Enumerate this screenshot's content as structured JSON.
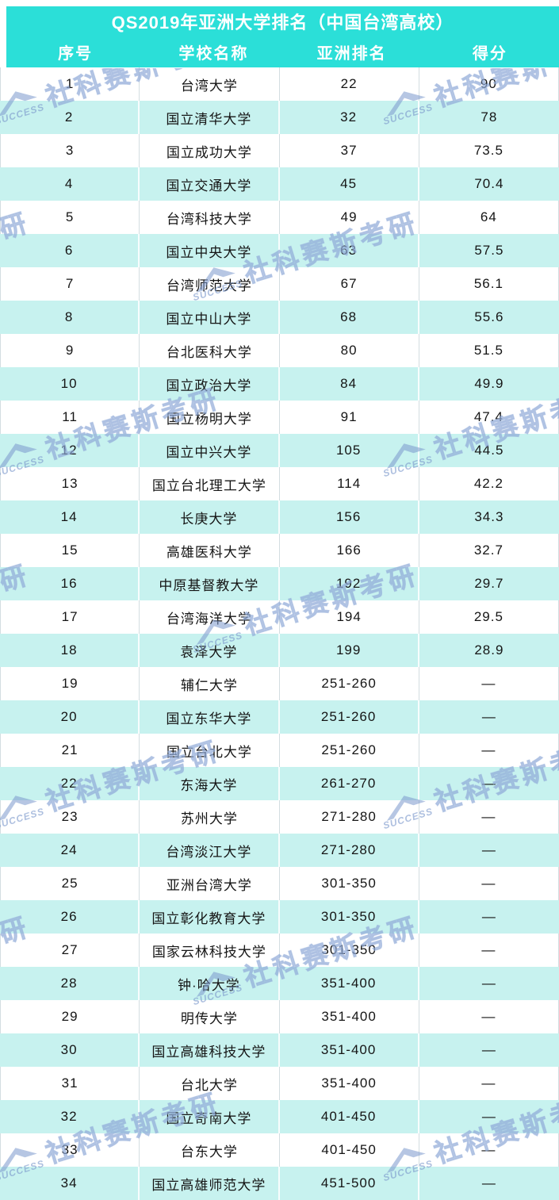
{
  "title": "QS2019年亚洲大学排名（中国台湾高校）",
  "columns": [
    "序号",
    "学校名称",
    "亚洲排名",
    "得分"
  ],
  "rows": [
    [
      "1",
      "台湾大学",
      "22",
      "90"
    ],
    [
      "2",
      "国立清华大学",
      "32",
      "78"
    ],
    [
      "3",
      "国立成功大学",
      "37",
      "73.5"
    ],
    [
      "4",
      "国立交通大学",
      "45",
      "70.4"
    ],
    [
      "5",
      "台湾科技大学",
      "49",
      "64"
    ],
    [
      "6",
      "国立中央大学",
      "63",
      "57.5"
    ],
    [
      "7",
      "台湾师范大学",
      "67",
      "56.1"
    ],
    [
      "8",
      "国立中山大学",
      "68",
      "55.6"
    ],
    [
      "9",
      "台北医科大学",
      "80",
      "51.5"
    ],
    [
      "10",
      "国立政治大学",
      "84",
      "49.9"
    ],
    [
      "11",
      "国立杨明大学",
      "91",
      "47.4"
    ],
    [
      "12",
      "国立中兴大学",
      "105",
      "44.5"
    ],
    [
      "13",
      "国立台北理工大学",
      "114",
      "42.2"
    ],
    [
      "14",
      "长庚大学",
      "156",
      "34.3"
    ],
    [
      "15",
      "高雄医科大学",
      "166",
      "32.7"
    ],
    [
      "16",
      "中原基督教大学",
      "192",
      "29.7"
    ],
    [
      "17",
      "台湾海洋大学",
      "194",
      "29.5"
    ],
    [
      "18",
      "袁泽大学",
      "199",
      "28.9"
    ],
    [
      "19",
      "辅仁大学",
      "251-260",
      "—"
    ],
    [
      "20",
      "国立东华大学",
      "251-260",
      "—"
    ],
    [
      "21",
      "国立台北大学",
      "251-260",
      "—"
    ],
    [
      "22",
      "东海大学",
      "261-270",
      "—"
    ],
    [
      "23",
      "苏州大学",
      "271-280",
      "—"
    ],
    [
      "24",
      "台湾淡江大学",
      "271-280",
      "—"
    ],
    [
      "25",
      "亚洲台湾大学",
      "301-350",
      "—"
    ],
    [
      "26",
      "国立彰化教育大学",
      "301-350",
      "—"
    ],
    [
      "27",
      "国家云林科技大学",
      "301-350",
      "—"
    ],
    [
      "28",
      "钟·哈大学",
      "351-400",
      "—"
    ],
    [
      "29",
      "明传大学",
      "351-400",
      "—"
    ],
    [
      "30",
      "国立高雄科技大学",
      "351-400",
      "—"
    ],
    [
      "31",
      "台北大学",
      "351-400",
      "—"
    ],
    [
      "32",
      "国立奇南大学",
      "401-450",
      "—"
    ],
    [
      "33",
      "台东大学",
      "401-450",
      "—"
    ],
    [
      "34",
      "国立高雄师范大学",
      "451-500",
      "—"
    ]
  ],
  "watermark": {
    "brand": "SUCCESS",
    "text": "社科赛斯考研"
  },
  "colors": {
    "header_bg": "#2bdfd8",
    "row_alt_bg": "#c7f2ef",
    "watermark_blue": "#809dd0",
    "header_text": "#ffffff",
    "body_text": "#151515"
  }
}
